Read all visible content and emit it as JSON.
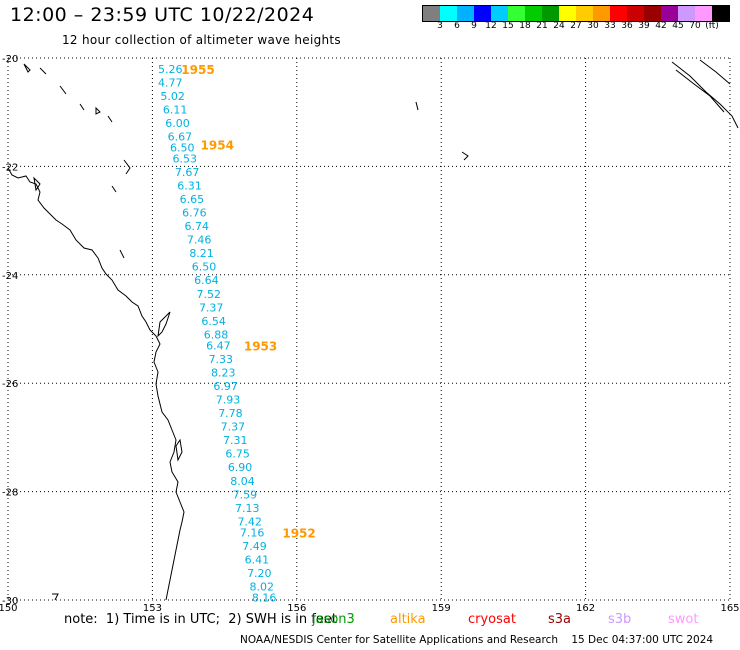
{
  "header": {
    "title": "12:00 – 23:59 UTC 10/22/2024",
    "subtitle": "12 hour collection of altimeter wave heights"
  },
  "legend": {
    "colors": [
      "#7f7f7f",
      "#00ffff",
      "#00b2ff",
      "#0000ff",
      "#00ccff",
      "#33ff33",
      "#00cc00",
      "#009900",
      "#ffff00",
      "#ffcc00",
      "#ff9900",
      "#ff0000",
      "#cc0000",
      "#990000",
      "#990099",
      "#cc99ff",
      "#ff99ff",
      "#000000"
    ],
    "labels": [
      "3",
      "6",
      "9",
      "12",
      "15",
      "18",
      "21",
      "24",
      "27",
      "30",
      "33",
      "36",
      "39",
      "42",
      "45",
      "70",
      "(ft)"
    ]
  },
  "map": {
    "lat_labels": [
      "-20",
      "-22",
      "-24",
      "-26",
      "-28",
      "-30"
    ],
    "lon_labels": [
      "150",
      "153",
      "156",
      "159",
      "162",
      "165"
    ],
    "track_color": "#00b2e0",
    "time_label_color": "#ff9900"
  },
  "chart_data": {
    "type": "scatter",
    "title": "12 hour collection of altimeter wave heights",
    "xlim": [
      150,
      165
    ],
    "ylim": [
      -30,
      -20
    ],
    "points": [
      {
        "lon": 153.2,
        "lat": -20.2,
        "swh": "5.26"
      },
      {
        "lon": 153.2,
        "lat": -20.45,
        "swh": "4.77"
      },
      {
        "lon": 153.25,
        "lat": -20.7,
        "swh": "5.02"
      },
      {
        "lon": 153.3,
        "lat": -20.95,
        "swh": "6.11"
      },
      {
        "lon": 153.35,
        "lat": -21.2,
        "swh": "6.00"
      },
      {
        "lon": 153.4,
        "lat": -21.45,
        "swh": "6.67"
      },
      {
        "lon": 153.45,
        "lat": -21.65,
        "swh": "6.50"
      },
      {
        "lon": 153.5,
        "lat": -21.85,
        "swh": "6.53"
      },
      {
        "lon": 153.55,
        "lat": -22.1,
        "swh": "7.67"
      },
      {
        "lon": 153.6,
        "lat": -22.35,
        "swh": "6.31"
      },
      {
        "lon": 153.65,
        "lat": -22.6,
        "swh": "6.65"
      },
      {
        "lon": 153.7,
        "lat": -22.85,
        "swh": "6.76"
      },
      {
        "lon": 153.75,
        "lat": -23.1,
        "swh": "6.74"
      },
      {
        "lon": 153.8,
        "lat": -23.35,
        "swh": "7.46"
      },
      {
        "lon": 153.85,
        "lat": -23.6,
        "swh": "8.21"
      },
      {
        "lon": 153.9,
        "lat": -23.85,
        "swh": "6.50"
      },
      {
        "lon": 153.95,
        "lat": -24.1,
        "swh": "6.64"
      },
      {
        "lon": 154.0,
        "lat": -24.35,
        "swh": "7.52"
      },
      {
        "lon": 154.05,
        "lat": -24.6,
        "swh": "7.37"
      },
      {
        "lon": 154.1,
        "lat": -24.85,
        "swh": "6.54"
      },
      {
        "lon": 154.15,
        "lat": -25.1,
        "swh": "6.88"
      },
      {
        "lon": 154.2,
        "lat": -25.3,
        "swh": "6.47"
      },
      {
        "lon": 154.25,
        "lat": -25.55,
        "swh": "7.33"
      },
      {
        "lon": 154.3,
        "lat": -25.8,
        "swh": "8.23"
      },
      {
        "lon": 154.35,
        "lat": -26.05,
        "swh": "6.97"
      },
      {
        "lon": 154.4,
        "lat": -26.3,
        "swh": "7.93"
      },
      {
        "lon": 154.45,
        "lat": -26.55,
        "swh": "7.78"
      },
      {
        "lon": 154.5,
        "lat": -26.8,
        "swh": "7.37"
      },
      {
        "lon": 154.55,
        "lat": -27.05,
        "swh": "7.31"
      },
      {
        "lon": 154.6,
        "lat": -27.3,
        "swh": "6.75"
      },
      {
        "lon": 154.65,
        "lat": -27.55,
        "swh": "6.90"
      },
      {
        "lon": 154.7,
        "lat": -27.8,
        "swh": "8.04"
      },
      {
        "lon": 154.75,
        "lat": -28.05,
        "swh": "7.59"
      },
      {
        "lon": 154.8,
        "lat": -28.3,
        "swh": "7.13"
      },
      {
        "lon": 154.85,
        "lat": -28.55,
        "swh": "7.42"
      },
      {
        "lon": 154.9,
        "lat": -28.75,
        "swh": "7.16"
      },
      {
        "lon": 154.95,
        "lat": -29.0,
        "swh": "7.49"
      },
      {
        "lon": 155.0,
        "lat": -29.25,
        "swh": "6.41"
      },
      {
        "lon": 155.05,
        "lat": -29.5,
        "swh": "7.20"
      },
      {
        "lon": 155.1,
        "lat": -29.75,
        "swh": "8.02"
      },
      {
        "lon": 155.15,
        "lat": -29.95,
        "swh": "8.16"
      }
    ],
    "time_labels": [
      {
        "lon": 153.6,
        "lat": -20.2,
        "text": "1955"
      },
      {
        "lon": 154.0,
        "lat": -21.6,
        "text": "1954"
      },
      {
        "lon": 154.9,
        "lat": -25.3,
        "text": "1953"
      },
      {
        "lon": 155.7,
        "lat": -28.75,
        "text": "1952"
      }
    ]
  },
  "footer": {
    "note": "note:  1) Time is in UTC;  2) SWH is in feet",
    "satellites": [
      {
        "name": "jason3",
        "color": "#009900"
      },
      {
        "name": "altika",
        "color": "#ff9900"
      },
      {
        "name": "cryosat",
        "color": "#ff0000"
      },
      {
        "name": "s3a",
        "color": "#990000"
      },
      {
        "name": "s3b",
        "color": "#cc99ff"
      },
      {
        "name": "swot",
        "color": "#ff99ff"
      }
    ],
    "credit": "NOAA/NESDIS Center for Satellite Applications and Research    15 Dec 04:37:00 UTC 2024"
  }
}
